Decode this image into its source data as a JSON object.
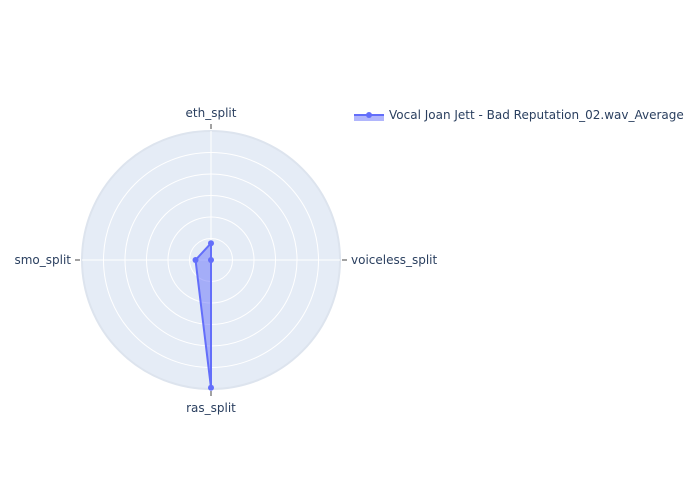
{
  "chart_data": {
    "type": "radar",
    "title": "",
    "axes": [
      "eth_split",
      "voiceless_split",
      "ras_split",
      "smo_split"
    ],
    "r_range": [
      0,
      1
    ],
    "grid": true,
    "legend_position": "top-right",
    "series": [
      {
        "name": "Vocal Joan Jett - Bad Reputation_02.wav_Average",
        "values": [
          0.13,
          0.0,
          0.99,
          0.12
        ],
        "line_color": "#636efa",
        "fill_color": "#636efa",
        "fill_opacity": 0.5
      }
    ]
  },
  "colors": {
    "polar_bg": "#e5ecf6",
    "grid": "#ffffff",
    "text": "#2a3f5f",
    "tick": "#444444"
  }
}
